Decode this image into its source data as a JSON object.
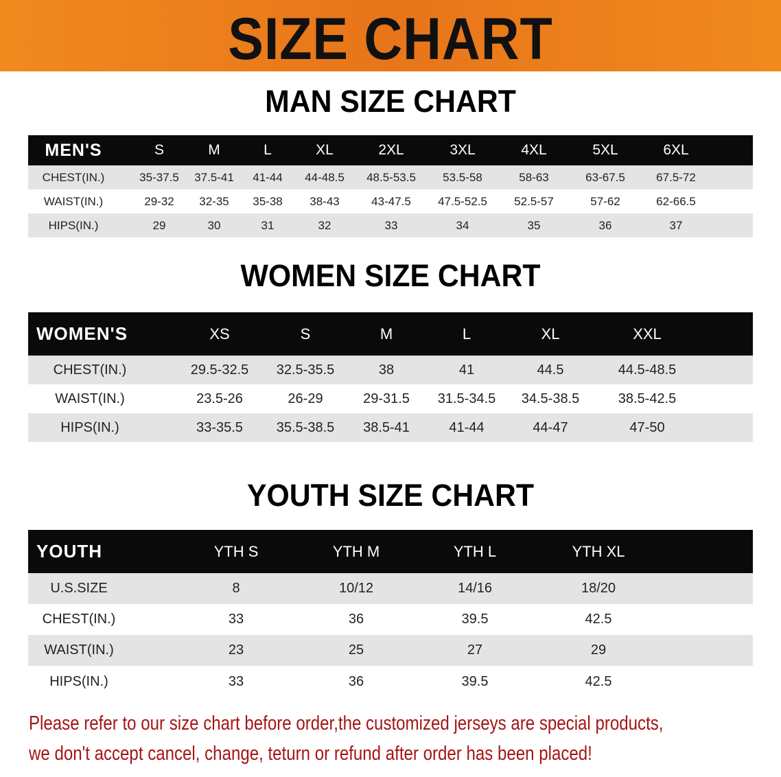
{
  "banner": {
    "title": "SIZE CHART",
    "color": "#ee7f1c"
  },
  "men": {
    "title": "MAN SIZE CHART",
    "header": [
      "MEN'S",
      "S",
      "M",
      "L",
      "XL",
      "2XL",
      "3XL",
      "4XL",
      "5XL",
      "6XL"
    ],
    "rows": [
      [
        "CHEST(IN.)",
        "35-37.5",
        "37.5-41",
        "41-44",
        "44-48.5",
        "48.5-53.5",
        "53.5-58",
        "58-63",
        "63-67.5",
        "67.5-72"
      ],
      [
        "WAIST(IN.)",
        "29-32",
        "32-35",
        "35-38",
        "38-43",
        "43-47.5",
        "47.5-52.5",
        "52.5-57",
        "57-62",
        "62-66.5"
      ],
      [
        "HIPS(IN.)",
        "29",
        "30",
        "31",
        "32",
        "33",
        "34",
        "35",
        "36",
        "37"
      ]
    ]
  },
  "women": {
    "title": "WOMEN SIZE CHART",
    "header": [
      "WOMEN'S",
      "XS",
      "S",
      "M",
      "L",
      "XL",
      "XXL"
    ],
    "rows": [
      [
        "CHEST(IN.)",
        "29.5-32.5",
        "32.5-35.5",
        "38",
        "41",
        "44.5",
        "44.5-48.5"
      ],
      [
        "WAIST(IN.)",
        "23.5-26",
        "26-29",
        "29-31.5",
        "31.5-34.5",
        "34.5-38.5",
        "38.5-42.5"
      ],
      [
        "HIPS(IN.)",
        "33-35.5",
        "35.5-38.5",
        "38.5-41",
        "41-44",
        "44-47",
        "47-50"
      ]
    ]
  },
  "youth": {
    "title": "YOUTH SIZE CHART",
    "header": [
      "YOUTH",
      "YTH S",
      "YTH M",
      "YTH L",
      "YTH XL"
    ],
    "rows": [
      [
        "U.S.SIZE",
        "8",
        "10/12",
        "14/16",
        "18/20"
      ],
      [
        "CHEST(IN.)",
        "33",
        "36",
        "39.5",
        "42.5"
      ],
      [
        "WAIST(IN.)",
        "23",
        "25",
        "27",
        "29"
      ],
      [
        "HIPS(IN.)",
        "33",
        "36",
        "39.5",
        "42.5"
      ]
    ]
  },
  "note": {
    "line1": "Please refer to our size chart before order,the customized jerseys are special products,",
    "line2": "we don't accept cancel, change, teturn or refund after order has been placed!",
    "color": "#a51515"
  }
}
